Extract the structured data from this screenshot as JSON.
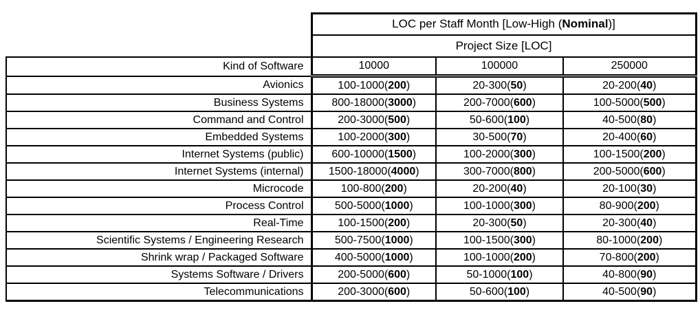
{
  "chart_data": {
    "type": "table",
    "title": {
      "prefix": "LOC per Staff Month [Low-High (",
      "bold": "Nominal",
      "suffix": ")]"
    },
    "subtitle": "Project Size [LOC]",
    "kind_header": "Kind of Software",
    "size_headers": [
      "10000",
      "100000",
      "250000"
    ],
    "cell_format": "low-high(nominal)",
    "rows": [
      {
        "kind": "Avionics",
        "cells": [
          [
            "100-1000",
            "200"
          ],
          [
            "20-300",
            "50"
          ],
          [
            "20-200",
            "40"
          ]
        ]
      },
      {
        "kind": "Business Systems",
        "cells": [
          [
            "800-18000",
            "3000"
          ],
          [
            "200-7000",
            "600"
          ],
          [
            "100-5000",
            "500"
          ]
        ]
      },
      {
        "kind": "Command and Control",
        "cells": [
          [
            "200-3000",
            "500"
          ],
          [
            "50-600",
            "100"
          ],
          [
            "40-500",
            "80"
          ]
        ]
      },
      {
        "kind": "Embedded Systems",
        "cells": [
          [
            "100-2000",
            "300"
          ],
          [
            "30-500",
            "70"
          ],
          [
            "20-400",
            "60"
          ]
        ]
      },
      {
        "kind": "Internet Systems (public)",
        "cells": [
          [
            "600-10000",
            "1500"
          ],
          [
            "100-2000",
            "300"
          ],
          [
            "100-1500",
            "200"
          ]
        ]
      },
      {
        "kind": "Internet Systems (internal)",
        "cells": [
          [
            "1500-18000",
            "4000"
          ],
          [
            "300-7000",
            "800"
          ],
          [
            "200-5000",
            "600"
          ]
        ]
      },
      {
        "kind": "Microcode",
        "cells": [
          [
            "100-800",
            "200"
          ],
          [
            "20-200",
            "40"
          ],
          [
            "20-100",
            "30"
          ]
        ]
      },
      {
        "kind": "Process Control",
        "cells": [
          [
            "500-5000",
            "1000"
          ],
          [
            "100-1000",
            "300"
          ],
          [
            "80-900",
            "200"
          ]
        ]
      },
      {
        "kind": "Real-Time",
        "cells": [
          [
            "100-1500",
            "200"
          ],
          [
            "20-300",
            "50"
          ],
          [
            "20-300",
            "40"
          ]
        ]
      },
      {
        "kind": "Scientific Systems / Engineering Research",
        "cells": [
          [
            "500-7500",
            "1000"
          ],
          [
            "100-1500",
            "300"
          ],
          [
            "80-1000",
            "200"
          ]
        ]
      },
      {
        "kind": "Shrink wrap / Packaged Software",
        "cells": [
          [
            "400-5000",
            "1000"
          ],
          [
            "100-1000",
            "200"
          ],
          [
            "70-800",
            "200"
          ]
        ]
      },
      {
        "kind": "Systems Software / Drivers",
        "cells": [
          [
            "200-5000",
            "600"
          ],
          [
            "50-1000",
            "100"
          ],
          [
            "40-800",
            "90"
          ]
        ]
      },
      {
        "kind": "Telecommunications",
        "cells": [
          [
            "200-3000",
            "600"
          ],
          [
            "50-600",
            "100"
          ],
          [
            "40-500",
            "90"
          ]
        ]
      }
    ],
    "colors": {
      "border": "#000000",
      "text": "#000000",
      "background": "#ffffff"
    }
  }
}
